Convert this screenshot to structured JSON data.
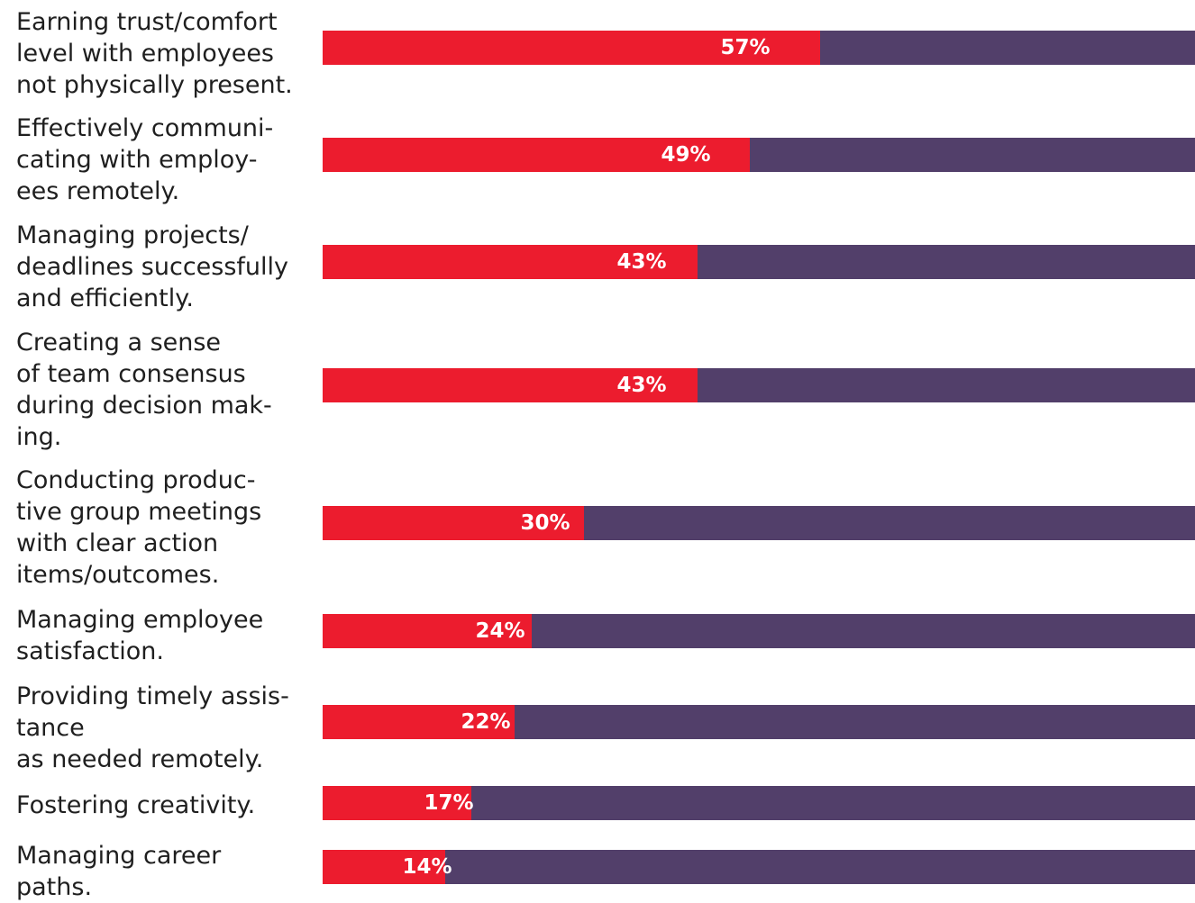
{
  "chart_data": {
    "type": "bar",
    "orientation": "horizontal",
    "stacked_to_total": true,
    "xlim": [
      0,
      100
    ],
    "grid": false,
    "legend": "none",
    "categories": [
      "Earning trust/comfort\nlevel with employees\nnot physically present.",
      "Effectively communi-\ncating with employ-\nees remotely.",
      "Managing projects/\ndeadlines successfully\nand efficiently.",
      "Creating a sense\nof team consensus\nduring decision mak-\ning.",
      "Conducting produc-\ntive group meetings\nwith clear action\nitems/outcomes.",
      "Managing employee\nsatisfaction.",
      "Providing timely assis-\ntance\nas needed remotely.",
      "Fostering creativity.",
      "Managing career\npaths."
    ],
    "values": [
      57,
      49,
      43,
      43,
      30,
      24,
      22,
      17,
      14
    ],
    "value_labels": [
      "57%",
      "49%",
      "43%",
      "43%",
      "30%",
      "24%",
      "22%",
      "17%",
      "14%"
    ],
    "colors": {
      "value": "#ec1c2e",
      "remainder": "#523f6a"
    }
  }
}
